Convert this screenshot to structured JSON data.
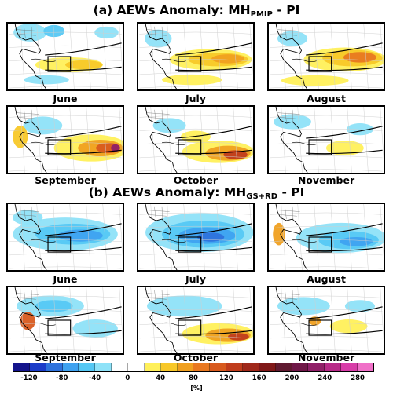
{
  "figure": {
    "title_a": {
      "prefix": "(a) AEWs Anomaly: MH",
      "sub": "PMIP",
      "suffix": " - PI"
    },
    "title_b": {
      "prefix": "(b) AEWs Anomaly: MH",
      "sub": "GS+RD",
      "suffix": " - PI"
    },
    "panels_a": [
      {
        "month": "June",
        "pattern": "a_jun"
      },
      {
        "month": "July",
        "pattern": "a_jul"
      },
      {
        "month": "August",
        "pattern": "a_aug"
      },
      {
        "month": "September",
        "pattern": "a_sep"
      },
      {
        "month": "October",
        "pattern": "a_oct"
      },
      {
        "month": "November",
        "pattern": "a_nov"
      }
    ],
    "panels_b": [
      {
        "month": "June",
        "pattern": "b_jun"
      },
      {
        "month": "July",
        "pattern": "b_jul"
      },
      {
        "month": "August",
        "pattern": "b_aug"
      },
      {
        "month": "September",
        "pattern": "b_sep"
      },
      {
        "month": "October",
        "pattern": "b_oct"
      },
      {
        "month": "November",
        "pattern": "b_nov"
      }
    ]
  },
  "colorbar": {
    "ticks": [
      "-120",
      "-80",
      "-40",
      "0",
      "40",
      "80",
      "120",
      "160",
      "200",
      "240",
      "280"
    ],
    "unit": "[%]",
    "colors": [
      "#14148c",
      "#1c3cc8",
      "#2e72dc",
      "#3fa2f0",
      "#55c8f4",
      "#8ee2f8",
      "#ffffff",
      "#ffffff",
      "#fff05a",
      "#f8c828",
      "#f0a020",
      "#e87820",
      "#d85a1e",
      "#c03c1c",
      "#a0281a",
      "#801818",
      "#601a30",
      "#701848",
      "#902068",
      "#b82a88",
      "#d83ca8",
      "#f070c8"
    ]
  }
}
